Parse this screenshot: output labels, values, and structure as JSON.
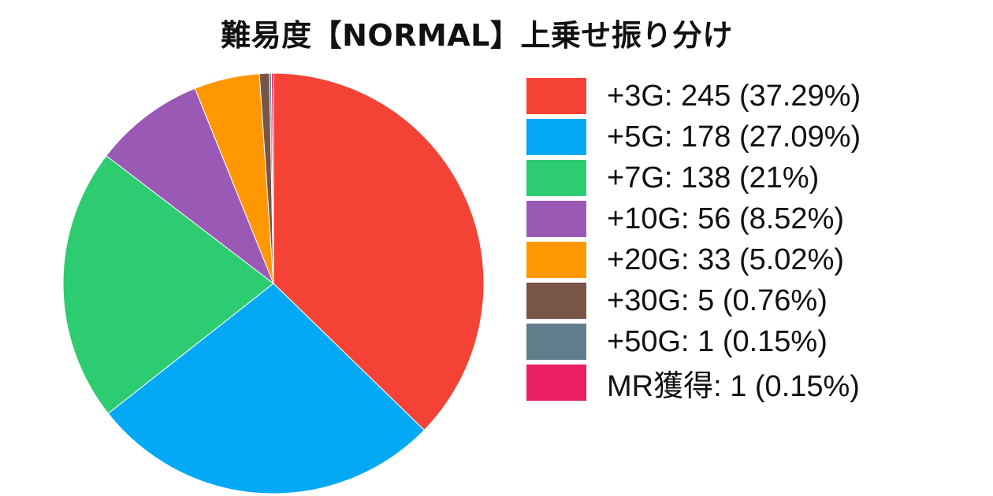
{
  "chart_data": {
    "type": "pie",
    "title": "難易度【NORMAL】上乗せ振り分け",
    "legend_placement": "right",
    "slices": [
      {
        "label": "+3G: 245 (37.29%)",
        "value": 245,
        "color": "#F44336"
      },
      {
        "label": "+5G: 178 (27.09%)",
        "value": 178,
        "color": "#03A9F4"
      },
      {
        "label": "+7G: 138 (21%)",
        "value": 138,
        "color": "#2ECC71"
      },
      {
        "label": "+10G: 56 (8.52%)",
        "value": 56,
        "color": "#9B59B6"
      },
      {
        "label": "+20G: 33 (5.02%)",
        "value": 33,
        "color": "#FF9800"
      },
      {
        "label": "+30G: 5 (0.76%)",
        "value": 5,
        "color": "#795548"
      },
      {
        "label": "+50G: 1 (0.15%)",
        "value": 1,
        "color": "#607D8B"
      },
      {
        "label": "MR獲得: 1 (0.15%)",
        "value": 1,
        "color": "#E91E63"
      }
    ]
  }
}
